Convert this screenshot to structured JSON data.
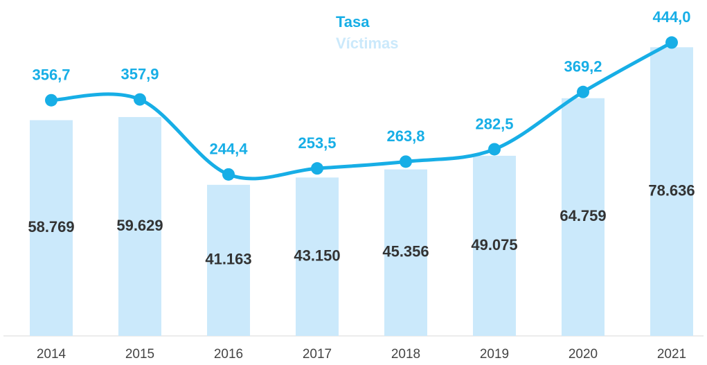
{
  "chart_data": {
    "type": "bar_line",
    "categories": [
      "2014",
      "2015",
      "2016",
      "2017",
      "2018",
      "2019",
      "2020",
      "2021"
    ],
    "series": [
      {
        "name": "Tasa",
        "type": "line",
        "axis": "y2",
        "color": "#17aee6",
        "values": [
          356.7,
          357.9,
          244.4,
          253.5,
          263.8,
          282.5,
          369.2,
          444.0
        ],
        "value_labels": [
          "356,7",
          "357,9",
          "244,4",
          "253,5",
          "263,8",
          "282,5",
          "369,2",
          "444,0"
        ]
      },
      {
        "name": "Víctimas",
        "type": "bar",
        "color": "#cbe9fb",
        "values": [
          58769,
          59629,
          41163,
          43150,
          45356,
          49075,
          64759,
          78636
        ],
        "value_labels": [
          "58.769",
          "59.629",
          "41.163",
          "43.150",
          "45.356",
          "49.075",
          "64.759",
          "78.636"
        ]
      }
    ],
    "ylim": [
      0,
      90000
    ],
    "y2lim": [
      0,
      500
    ],
    "legend": "top"
  }
}
